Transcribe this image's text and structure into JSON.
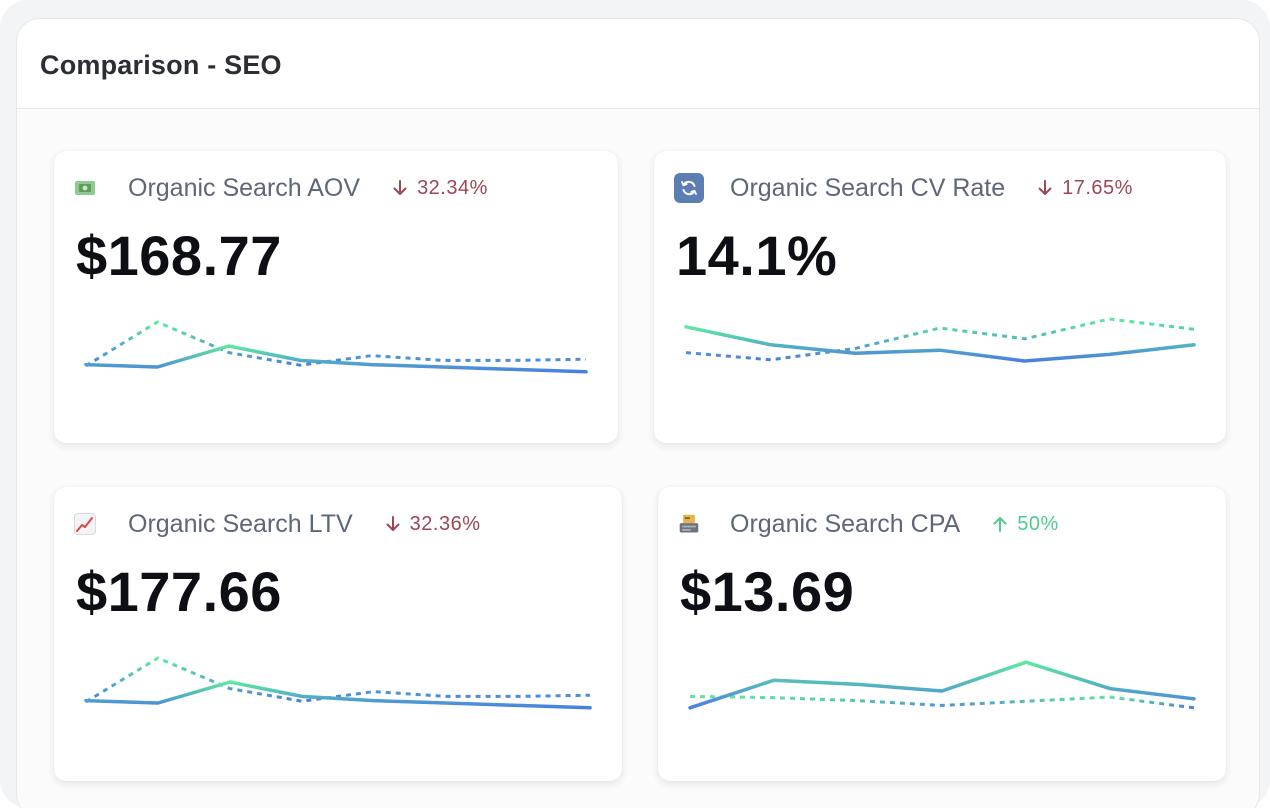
{
  "panel": {
    "title": "Comparison - SEO"
  },
  "colors": {
    "current_line_start": "#5ee9a1",
    "current_line_end": "#4a7fe0",
    "comparison_line": "#5aa7de",
    "delta_down": "#9b4755",
    "delta_up": "#4fcd8e"
  },
  "cards": [
    {
      "label": "Organic Search AOV",
      "icon": "cash-icon",
      "delta": {
        "direction": "down",
        "text": "32.34%"
      },
      "value": "$168.77",
      "sparkline": {
        "current": [
          0.24,
          0.2,
          0.55,
          0.31,
          0.24,
          0.2,
          0.16,
          0.12
        ],
        "comparison": [
          0.22,
          0.95,
          0.44,
          0.23,
          0.39,
          0.31,
          0.31,
          0.33
        ]
      }
    },
    {
      "label": "Organic Search CV Rate",
      "icon": "refresh-icon",
      "delta": {
        "direction": "down",
        "text": "17.65%"
      },
      "value": "14.1%",
      "sparkline": {
        "current": [
          0.87,
          0.57,
          0.43,
          0.48,
          0.3,
          0.41,
          0.57
        ],
        "comparison": [
          0.44,
          0.32,
          0.51,
          0.85,
          0.67,
          1.0,
          0.83
        ]
      }
    },
    {
      "label": "Organic Search LTV",
      "icon": "chart-increasing-icon",
      "delta": {
        "direction": "down",
        "text": "32.36%"
      },
      "value": "$177.66",
      "sparkline": {
        "current": [
          0.24,
          0.2,
          0.55,
          0.31,
          0.24,
          0.2,
          0.16,
          0.12
        ],
        "comparison": [
          0.22,
          0.95,
          0.44,
          0.23,
          0.39,
          0.31,
          0.31,
          0.33
        ]
      }
    },
    {
      "label": "Organic Search CPA",
      "icon": "credit-card-icon",
      "delta": {
        "direction": "up",
        "text": "50%"
      },
      "value": "$13.69",
      "sparkline": {
        "current": [
          0.12,
          0.58,
          0.51,
          0.4,
          0.88,
          0.44,
          0.27
        ],
        "comparison": [
          0.31,
          0.29,
          0.24,
          0.16,
          0.23,
          0.3,
          0.12
        ]
      }
    }
  ]
}
